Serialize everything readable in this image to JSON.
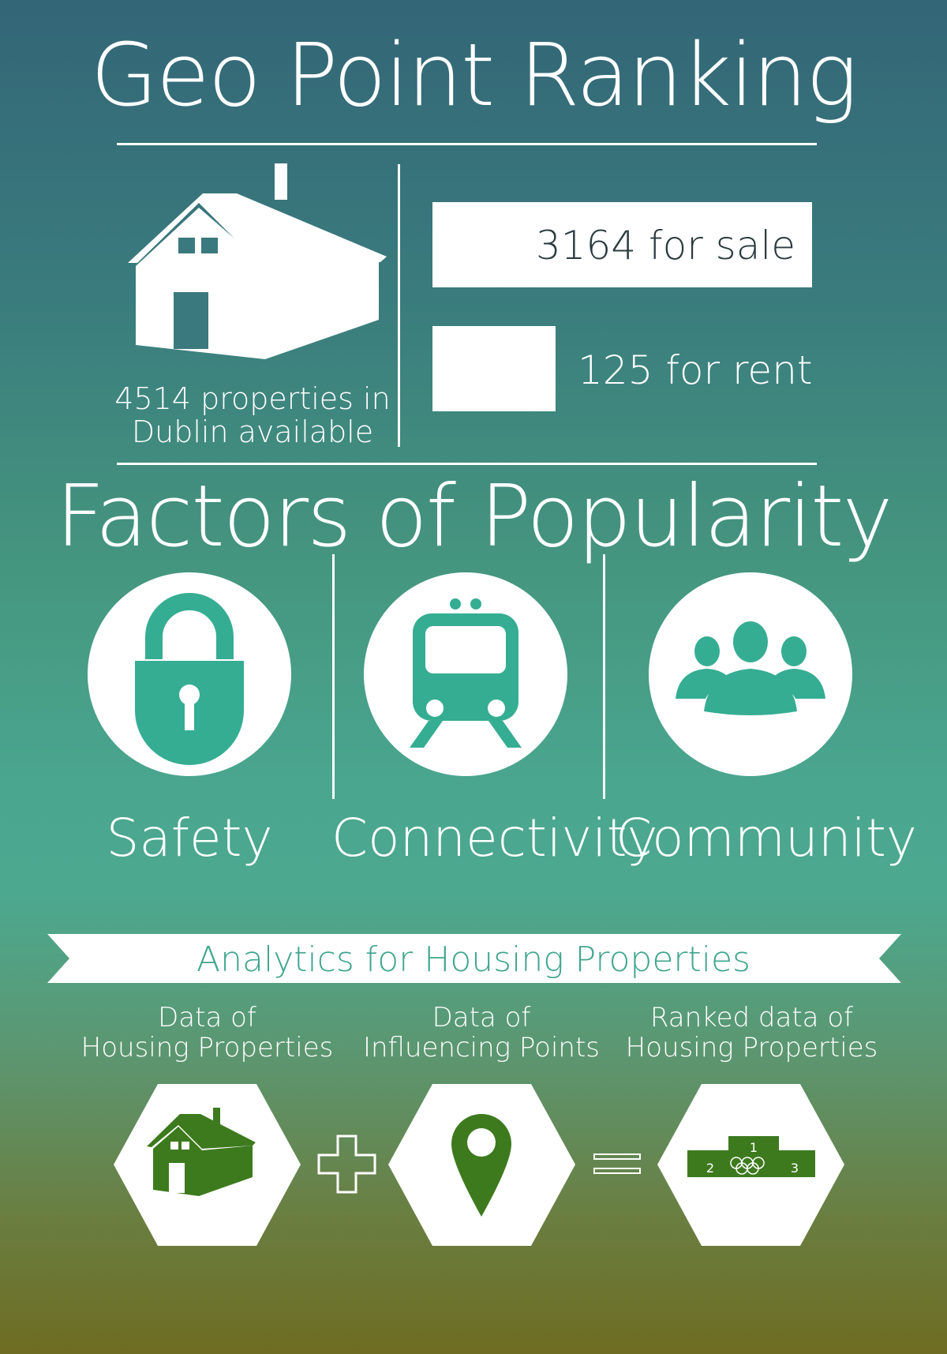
{
  "title": "Geo Point Ranking",
  "summary": {
    "properties_caption_line1": "4514 properties in",
    "properties_caption_line2": "Dublin available",
    "for_sale": {
      "label": "3164 for sale",
      "count": 3164
    },
    "for_rent": {
      "label": "125 for rent",
      "count": 125
    }
  },
  "factors": {
    "heading": "Factors of Popularity",
    "items": [
      {
        "label": "Safety",
        "icon": "padlock-icon"
      },
      {
        "label": "Connectivity",
        "icon": "train-icon"
      },
      {
        "label": "Community",
        "icon": "people-group-icon"
      }
    ]
  },
  "analytics": {
    "banner": "Analytics for Housing Properties",
    "steps": [
      {
        "line1": "Data of",
        "line2": "Housing Properties",
        "icon": "house-icon"
      },
      {
        "line1": "Data of",
        "line2": "Influencing Points",
        "icon": "map-pin-icon"
      },
      {
        "line1": "Ranked data of",
        "line2": "Housing Properties",
        "icon": "podium-icon"
      }
    ],
    "operators": {
      "plus": "plus-icon",
      "equals": "equals-icon"
    },
    "podium": {
      "first": "1",
      "second": "2",
      "third": "3"
    }
  },
  "colors": {
    "teal_icon": "#35ad93",
    "green_icon": "#3d7a1e",
    "banner_text": "#3fa58e"
  }
}
